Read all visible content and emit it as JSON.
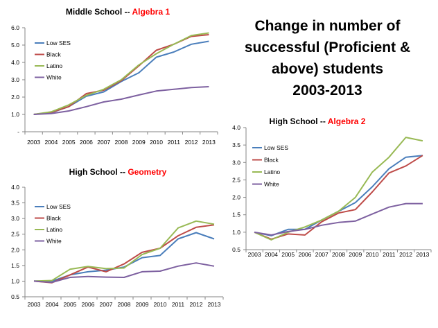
{
  "headline": {
    "lines": [
      "Change in number of",
      "successful (Proficient &",
      "above) students",
      "2003-2013"
    ]
  },
  "colors": {
    "low_ses": "#4a7ebb",
    "black": "#be4b48",
    "latino": "#98b954",
    "white": "#7d60a0",
    "title_accent": "#ff0000",
    "axis": "#868686"
  },
  "chart_data": [
    {
      "type": "line",
      "title_prefix": "Middle School -- ",
      "title_subject": "Algebra 1",
      "x": [
        "2003",
        "2004",
        "2005",
        "2006",
        "2007",
        "2008",
        "2009",
        "2010",
        "2011",
        "2012",
        "2013"
      ],
      "ylim": [
        0,
        6
      ],
      "yticks": [
        "-",
        "1.0",
        "2.0",
        "3.0",
        "4.0",
        "5.0",
        "6.0"
      ],
      "grid": false,
      "legend": "top-left",
      "series": [
        {
          "name": "Low SES",
          "values": [
            1.0,
            1.1,
            1.45,
            2.05,
            2.3,
            2.9,
            3.4,
            4.3,
            4.6,
            5.05,
            5.22
          ]
        },
        {
          "name": "Black",
          "values": [
            1.0,
            1.12,
            1.45,
            2.2,
            2.4,
            2.95,
            3.8,
            4.7,
            5.05,
            5.5,
            5.6
          ]
        },
        {
          "name": "Latino",
          "values": [
            1.0,
            1.15,
            1.55,
            2.1,
            2.45,
            3.0,
            3.85,
            4.5,
            5.05,
            5.55,
            5.7
          ]
        },
        {
          "name": "White",
          "values": [
            1.0,
            1.05,
            1.2,
            1.45,
            1.72,
            1.88,
            2.12,
            2.35,
            2.45,
            2.55,
            2.6
          ]
        }
      ]
    },
    {
      "type": "line",
      "title_prefix": "High School -- ",
      "title_subject": "Geometry",
      "x": [
        "2003",
        "2004",
        "2005",
        "2006",
        "2007",
        "2008",
        "2009",
        "2010",
        "2011",
        "2012",
        "2013"
      ],
      "ylim": [
        0.5,
        4.0
      ],
      "yticks": [
        "0.5",
        "1.0",
        "1.5",
        "2.0",
        "2.5",
        "3.0",
        "3.5",
        "4.0"
      ],
      "grid": false,
      "legend": "top-left",
      "series": [
        {
          "name": "Low SES",
          "values": [
            1.0,
            1.0,
            1.2,
            1.3,
            1.35,
            1.45,
            1.75,
            1.82,
            2.35,
            2.55,
            2.35
          ]
        },
        {
          "name": "Black",
          "values": [
            1.0,
            0.95,
            1.2,
            1.45,
            1.3,
            1.55,
            1.92,
            2.05,
            2.45,
            2.72,
            2.8
          ]
        },
        {
          "name": "Latino",
          "values": [
            1.0,
            1.02,
            1.38,
            1.47,
            1.4,
            1.42,
            1.85,
            2.05,
            2.7,
            2.92,
            2.82
          ]
        },
        {
          "name": "White",
          "values": [
            1.0,
            0.96,
            1.12,
            1.15,
            1.13,
            1.12,
            1.3,
            1.32,
            1.48,
            1.58,
            1.48
          ]
        }
      ]
    },
    {
      "type": "line",
      "title_prefix": "High School -- ",
      "title_subject": "Algebra 2",
      "x": [
        "2003",
        "2004",
        "2005",
        "2006",
        "2007",
        "2008",
        "2009",
        "2010",
        "2011",
        "2012",
        "2013"
      ],
      "ylim": [
        0.5,
        4.0
      ],
      "yticks": [
        "0.5",
        "1.0",
        "1.5",
        "2.0",
        "2.5",
        "3.0",
        "3.5",
        "4.0"
      ],
      "grid": false,
      "legend": "top-left",
      "series": [
        {
          "name": "Low SES",
          "values": [
            1.0,
            0.9,
            1.08,
            1.08,
            1.35,
            1.6,
            1.85,
            2.3,
            2.82,
            3.15,
            3.2
          ]
        },
        {
          "name": "Black",
          "values": [
            1.0,
            0.8,
            0.95,
            0.92,
            1.3,
            1.55,
            1.65,
            2.15,
            2.7,
            2.9,
            3.2
          ]
        },
        {
          "name": "Latino",
          "values": [
            1.0,
            0.78,
            1.0,
            1.15,
            1.35,
            1.6,
            2.0,
            2.72,
            3.15,
            3.72,
            3.62
          ]
        },
        {
          "name": "White",
          "values": [
            1.0,
            0.92,
            1.02,
            1.08,
            1.2,
            1.28,
            1.32,
            1.52,
            1.72,
            1.82,
            1.82
          ]
        }
      ]
    }
  ]
}
